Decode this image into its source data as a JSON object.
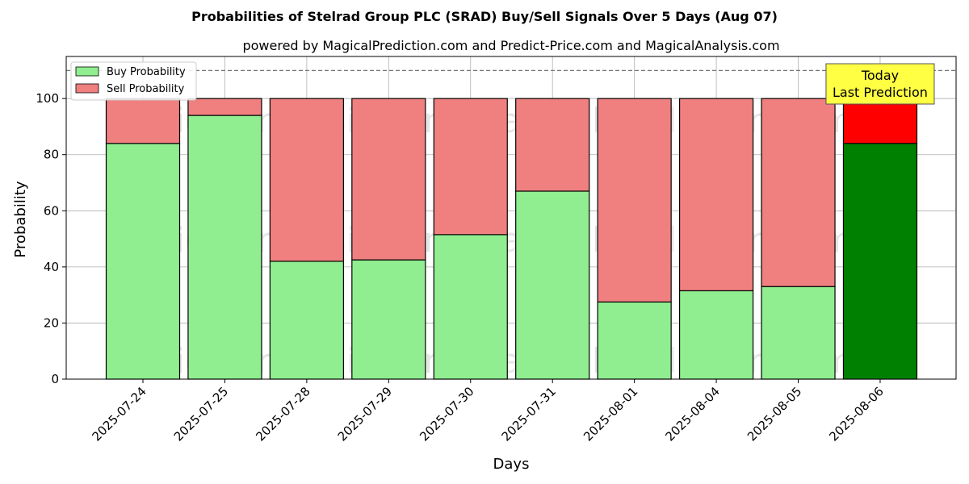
{
  "chart_data": {
    "type": "bar",
    "stacked": true,
    "title": "Probabilities of Stelrad Group PLC (SRAD) Buy/Sell Signals Over 5 Days (Aug 07)",
    "subtitle": "powered by MagicalPrediction.com and Predict-Price.com and MagicalAnalysis.com",
    "xlabel": "Days",
    "ylabel": "Probability",
    "ylim": [
      0,
      115
    ],
    "yticks": [
      0,
      20,
      40,
      60,
      80,
      100
    ],
    "grid": true,
    "legend_position": "top-left",
    "categories": [
      "2025-07-24",
      "2025-07-25",
      "2025-07-28",
      "2025-07-29",
      "2025-07-30",
      "2025-07-31",
      "2025-08-01",
      "2025-08-04",
      "2025-08-05",
      "2025-08-06"
    ],
    "series": [
      {
        "name": "Buy Probability",
        "color": "#90ee90",
        "highlight_color": "#008000",
        "values": [
          84,
          94,
          42,
          42.5,
          51.5,
          67,
          27.5,
          31.5,
          33,
          84
        ]
      },
      {
        "name": "Sell Probability",
        "color": "#f08080",
        "highlight_color": "#ff0000",
        "values": [
          16,
          6,
          58,
          57.5,
          48.5,
          33,
          72.5,
          68.5,
          67,
          16
        ]
      }
    ],
    "highlight_index": 9,
    "reference_line": {
      "y": 110,
      "style": "dashed"
    },
    "annotation": {
      "lines": [
        "Today",
        "Last Prediction"
      ],
      "background": "#ffff44"
    },
    "watermarks": [
      "MagicalAnalysis.com",
      "MagicalPrediction.com"
    ]
  }
}
